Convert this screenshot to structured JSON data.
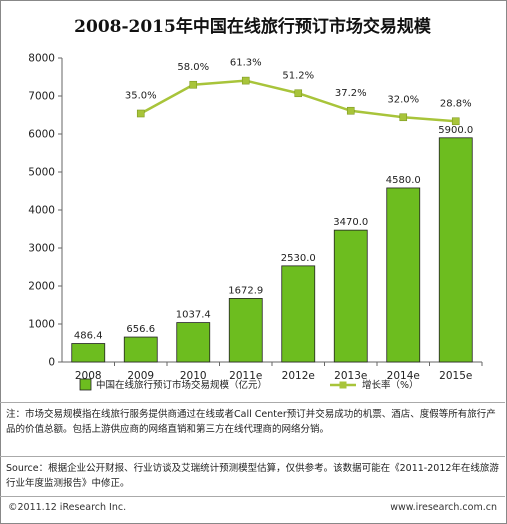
{
  "chart_data": {
    "type": "bar",
    "title": "2008-2015年中国在线旅行预订市场交易规模",
    "categories": [
      "2008",
      "2009",
      "2010",
      "2011e",
      "2012e",
      "2013e",
      "2014e",
      "2015e"
    ],
    "series": [
      {
        "name": "中国在线旅行预订市场交易规模（亿元）",
        "type": "bar",
        "values": [
          486.4,
          656.6,
          1037.4,
          1672.9,
          2530.0,
          3470.0,
          4580.0,
          5900.0
        ],
        "labels": [
          "486.4",
          "656.6",
          "1037.4",
          "1672.9",
          "2530.0",
          "3470.0",
          "4580.0",
          "5900.0"
        ],
        "color": "#6dbd1f"
      },
      {
        "name": "增长率（%）",
        "type": "line",
        "values": [
          null,
          35.0,
          58.0,
          61.3,
          51.2,
          37.2,
          32.0,
          28.8
        ],
        "labels": [
          "",
          "35.0%",
          "58.0%",
          "61.3%",
          "51.2%",
          "37.2%",
          "32.0%",
          "28.8%"
        ],
        "color": "#a8c43a"
      }
    ],
    "ylim": [
      0,
      8000
    ],
    "yticks": [
      0,
      1000,
      2000,
      3000,
      4000,
      5000,
      6000,
      7000,
      8000
    ],
    "grid": false,
    "legend": "bottom"
  },
  "notes": {
    "note1": "注：市场交易规模指在线旅行服务提供商通过在线或者Call Center预订并交易成功的机票、酒店、度假等所有旅行产品的价值总额。包括上游供应商的网络直销和第三方在线代理商的网络分销。",
    "note2": "Source：根据企业公开财报、行业访谈及艾瑞统计预测模型估算，仅供参考。该数据可能在《2011-2012年在线旅游行业年度监测报告》中修正。"
  },
  "footer": {
    "left": "©2011.12 iResearch Inc.",
    "right": "www.iresearch.com.cn"
  }
}
